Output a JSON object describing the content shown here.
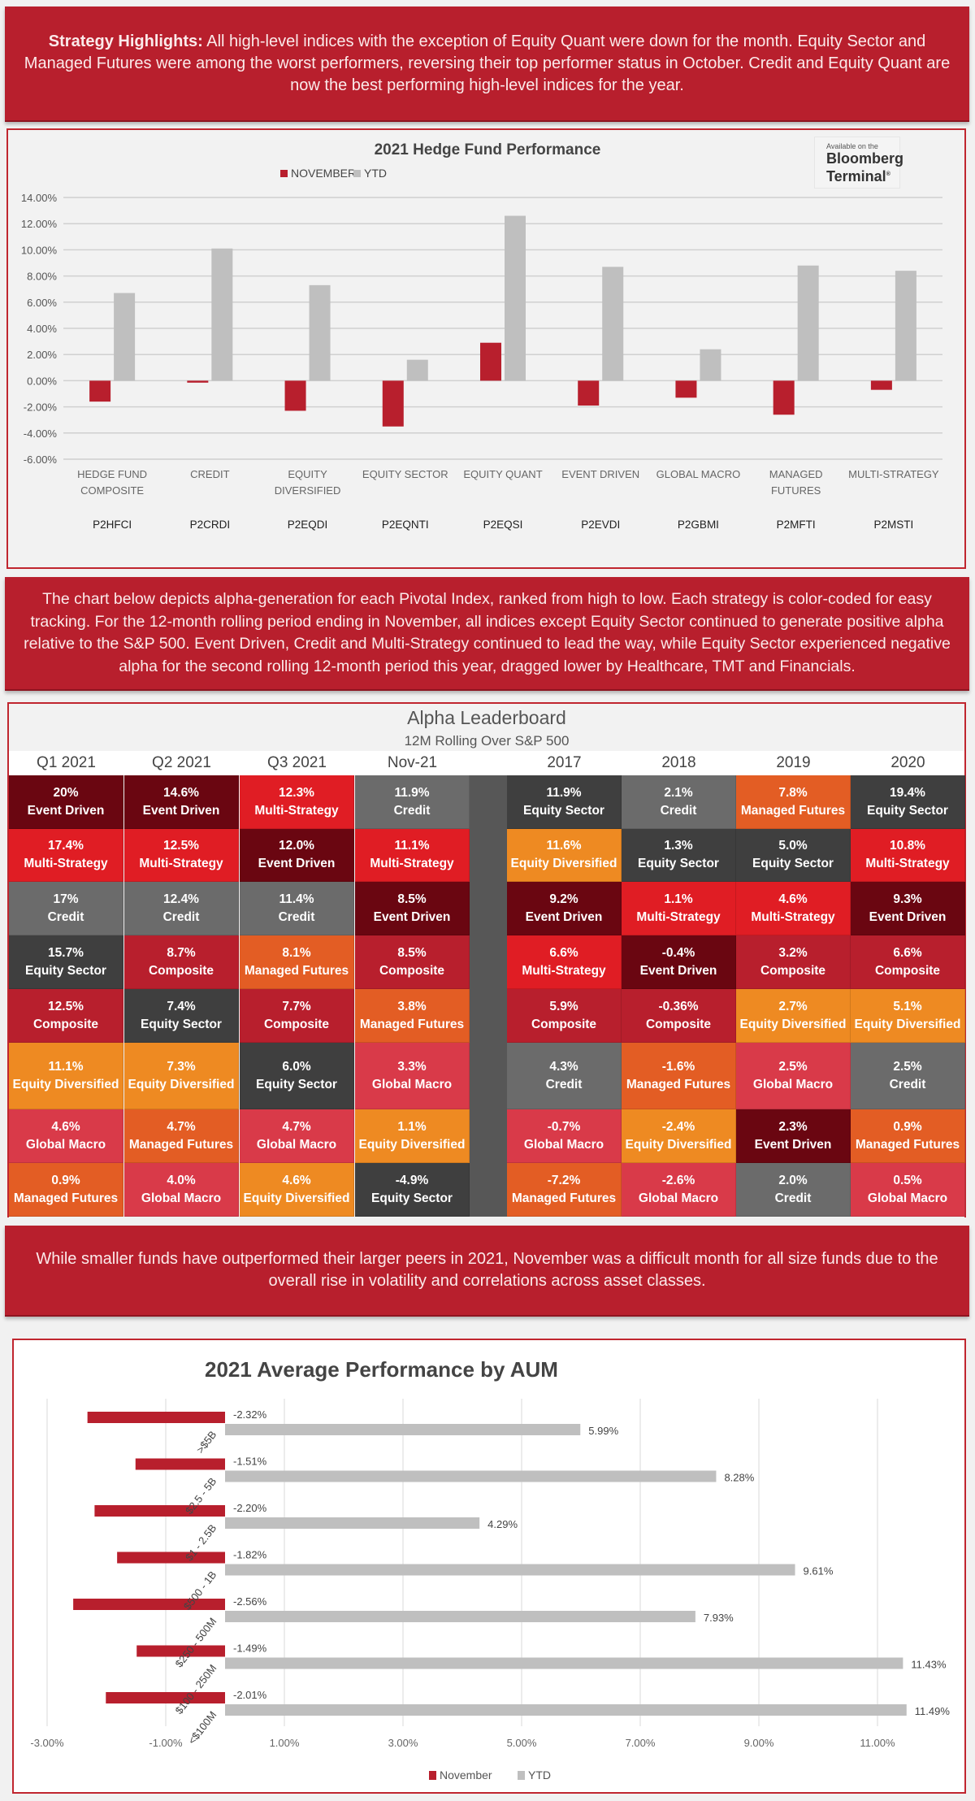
{
  "banners": {
    "highlights_label": "Strategy Highlights:",
    "highlights_text": " All high-level indices with the exception of Equity Quant were down for the month. Equity Sector and Managed Futures were among the worst performers, reversing their top performer status in October. Credit and Equity Quant are now the best performing high-level indices for the year.",
    "alpha_text": "The chart below depicts alpha-generation for each Pivotal Index, ranked from high to low. Each strategy is color-coded for easy tracking. For the 12-month rolling period ending in November, all indices except Equity Sector continued to generate positive alpha relative to the S&P 500.  Event Driven, Credit and Multi-Strategy continued to lead the way, while Equity Sector experienced negative alpha for the second rolling 12-month period this year, dragged lower by Healthcare, TMT and Financials.",
    "aum_text": "While smaller funds have outperformed their larger peers in 2021, November was a difficult month for all size funds due to the overall rise in volatility and correlations across asset classes."
  },
  "bloomberg": {
    "small": "Available on the",
    "line1": "Bloomberg",
    "line2": "Terminal",
    "mark": "®"
  },
  "colors": {
    "red": "#b81f2d",
    "gray": "#bfbfbf",
    "event": "#6a0611",
    "multi": "#e01d24",
    "credit": "#6b6b6b",
    "equity_sector": "#3f3f3f",
    "composite": "#b81f2d",
    "managed": "#e35d24",
    "diversified": "#ee8a22",
    "macro": "#d93a49"
  },
  "chart_data": [
    {
      "type": "bar",
      "title": "2021 Hedge Fund Performance",
      "legend": [
        "NOVEMBER",
        "YTD"
      ],
      "legend_position": "top",
      "categories": [
        "HEDGE FUND COMPOSITE",
        "CREDIT",
        "EQUITY DIVERSIFIED",
        "EQUITY SECTOR",
        "EQUITY QUANT",
        "EVENT DRIVEN",
        "GLOBAL MACRO",
        "MANAGED FUTURES",
        "MULTI-STRATEGY"
      ],
      "category_lines": [
        [
          "HEDGE FUND",
          "COMPOSITE"
        ],
        [
          "CREDIT"
        ],
        [
          "EQUITY",
          "DIVERSIFIED"
        ],
        [
          "EQUITY SECTOR"
        ],
        [
          "EQUITY QUANT"
        ],
        [
          "EVENT DRIVEN"
        ],
        [
          "GLOBAL MACRO"
        ],
        [
          "MANAGED",
          "FUTURES"
        ],
        [
          "MULTI-STRATEGY"
        ]
      ],
      "tickers": [
        "P2HFCI",
        "P2CRDI",
        "P2EQDI",
        "P2EQNTI",
        "P2EQSI",
        "P2EVDI",
        "P2GBMI",
        "P2MFTI",
        "P2MSTI"
      ],
      "series": [
        {
          "name": "NOVEMBER",
          "values": [
            -1.6,
            -0.15,
            -2.3,
            -3.5,
            2.9,
            -1.9,
            -1.3,
            -2.6,
            -0.7
          ]
        },
        {
          "name": "YTD",
          "values": [
            6.7,
            10.1,
            7.3,
            1.6,
            12.6,
            8.7,
            2.4,
            8.8,
            8.4
          ]
        }
      ],
      "ylim": [
        -6,
        14
      ],
      "yticks": [
        "14.00%",
        "12.00%",
        "10.00%",
        "8.00%",
        "6.00%",
        "4.00%",
        "2.00%",
        "0.00%",
        "-2.00%",
        "-4.00%",
        "-6.00%"
      ],
      "ytick_values": [
        14,
        12,
        10,
        8,
        6,
        4,
        2,
        0,
        -2,
        -4,
        -6
      ],
      "grid": true
    },
    {
      "type": "table",
      "title": "Alpha Leaderboard",
      "subtitle": "12M Rolling Over S&P 500",
      "columns": [
        "Q1 2021",
        "Q2 2021",
        "Q3 2021",
        "Nov-21",
        "2017",
        "2018",
        "2019",
        "2020"
      ],
      "cells": [
        [
          [
            "20%",
            "Event Driven",
            "event"
          ],
          [
            "17.4%",
            "Multi-Strategy",
            "multi"
          ],
          [
            "17%",
            "Credit",
            "credit"
          ],
          [
            "15.7%",
            "Equity Sector",
            "equity_sector"
          ],
          [
            "12.5%",
            "Composite",
            "composite"
          ],
          [
            "11.1%",
            "Equity Diversified",
            "diversified"
          ],
          [
            "4.6%",
            "Global Macro",
            "macro"
          ],
          [
            "0.9%",
            "Managed Futures",
            "managed"
          ]
        ],
        [
          [
            "14.6%",
            "Event Driven",
            "event"
          ],
          [
            "12.5%",
            "Multi-Strategy",
            "multi"
          ],
          [
            "12.4%",
            "Credit",
            "credit"
          ],
          [
            "8.7%",
            "Composite",
            "composite"
          ],
          [
            "7.4%",
            "Equity Sector",
            "equity_sector"
          ],
          [
            "7.3%",
            "Equity Diversified",
            "diversified"
          ],
          [
            "4.7%",
            "Managed Futures",
            "managed"
          ],
          [
            "4.0%",
            "Global Macro",
            "macro"
          ]
        ],
        [
          [
            "12.3%",
            "Multi-Strategy",
            "multi"
          ],
          [
            "12.0%",
            "Event Driven",
            "event"
          ],
          [
            "11.4%",
            "Credit",
            "credit"
          ],
          [
            "8.1%",
            "Managed Futures",
            "managed"
          ],
          [
            "7.7%",
            "Composite",
            "composite"
          ],
          [
            "6.0%",
            "Equity Sector",
            "equity_sector"
          ],
          [
            "4.7%",
            "Global Macro",
            "macro"
          ],
          [
            "4.6%",
            "Equity Diversified",
            "diversified"
          ]
        ],
        [
          [
            "11.9%",
            "Credit",
            "credit"
          ],
          [
            "11.1%",
            "Multi-Strategy",
            "multi"
          ],
          [
            "8.5%",
            "Event Driven",
            "event"
          ],
          [
            "8.5%",
            "Composite",
            "composite"
          ],
          [
            "3.8%",
            "Managed Futures",
            "managed"
          ],
          [
            "3.3%",
            "Global Macro",
            "macro"
          ],
          [
            "1.1%",
            "Equity Diversified",
            "diversified"
          ],
          [
            "-4.9%",
            "Equity Sector",
            "equity_sector"
          ]
        ],
        [
          [
            "11.9%",
            "Equity Sector",
            "equity_sector"
          ],
          [
            "11.6%",
            "Equity Diversified",
            "diversified"
          ],
          [
            "9.2%",
            "Event Driven",
            "event"
          ],
          [
            "6.6%",
            "Multi-Strategy",
            "multi"
          ],
          [
            "5.9%",
            "Composite",
            "composite"
          ],
          [
            "4.3%",
            "Credit",
            "credit"
          ],
          [
            "-0.7%",
            "Global Macro",
            "macro"
          ],
          [
            "-7.2%",
            "Managed Futures",
            "managed"
          ]
        ],
        [
          [
            "2.1%",
            "Credit",
            "credit"
          ],
          [
            "1.3%",
            "Equity Sector",
            "equity_sector"
          ],
          [
            "1.1%",
            "Multi-Strategy",
            "multi"
          ],
          [
            "-0.4%",
            "Event Driven",
            "event"
          ],
          [
            "-0.36%",
            "Composite",
            "composite"
          ],
          [
            "-1.6%",
            "Managed Futures",
            "managed"
          ],
          [
            "-2.4%",
            "Equity Diversified",
            "diversified"
          ],
          [
            "-2.6%",
            "Global Macro",
            "macro"
          ]
        ],
        [
          [
            "7.8%",
            "Managed Futures",
            "managed"
          ],
          [
            "5.0%",
            "Equity Sector",
            "equity_sector"
          ],
          [
            "4.6%",
            "Multi-Strategy",
            "multi"
          ],
          [
            "3.2%",
            "Composite",
            "composite"
          ],
          [
            "2.7%",
            "Equity Diversified",
            "diversified"
          ],
          [
            "2.5%",
            "Global Macro",
            "macro"
          ],
          [
            "2.3%",
            "Event Driven",
            "event"
          ],
          [
            "2.0%",
            "Credit",
            "credit"
          ]
        ],
        [
          [
            "19.4%",
            "Equity Sector",
            "equity_sector"
          ],
          [
            "10.8%",
            "Multi-Strategy",
            "multi"
          ],
          [
            "9.3%",
            "Event Driven",
            "event"
          ],
          [
            "6.6%",
            "Composite",
            "composite"
          ],
          [
            "5.1%",
            "Equity Diversified",
            "diversified"
          ],
          [
            "2.5%",
            "Credit",
            "credit"
          ],
          [
            "0.9%",
            "Managed Futures",
            "managed"
          ],
          [
            "0.5%",
            "Global Macro",
            "macro"
          ]
        ]
      ]
    },
    {
      "type": "bar",
      "orientation": "horizontal",
      "title": "2021 Average Performance by AUM",
      "legend": [
        "November",
        "YTD"
      ],
      "legend_position": "bottom",
      "categories": [
        ">$5B",
        "$2.5 - 5B",
        "$1 - 2.5B",
        "$500 - 1B",
        "$250 - 500M",
        "$100 - 250M",
        "<$100M"
      ],
      "series": [
        {
          "name": "November",
          "values": [
            -2.32,
            -1.51,
            -2.2,
            -1.82,
            -2.56,
            -1.49,
            -2.01
          ],
          "labels": [
            "-2.32%",
            "-1.51%",
            "-2.20%",
            "-1.82%",
            "-2.56%",
            "-1.49%",
            "-2.01%"
          ]
        },
        {
          "name": "YTD",
          "values": [
            5.99,
            8.28,
            4.29,
            9.61,
            7.93,
            11.43,
            11.49
          ],
          "labels": [
            "5.99%",
            "8.28%",
            "4.29%",
            "9.61%",
            "7.93%",
            "11.43%",
            "11.49%"
          ]
        }
      ],
      "xlim": [
        -3,
        12
      ],
      "xticks": [
        "-3.00%",
        "-1.00%",
        "1.00%",
        "3.00%",
        "5.00%",
        "7.00%",
        "9.00%",
        "11.00%"
      ],
      "xtick_values": [
        -3,
        -1,
        1,
        3,
        5,
        7,
        9,
        11
      ],
      "grid": true
    }
  ]
}
